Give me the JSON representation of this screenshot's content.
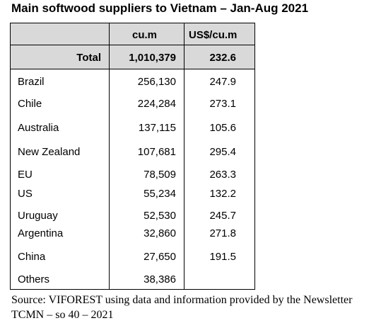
{
  "title": "Main softwood suppliers to Vietnam – Jan-Aug 2021",
  "table": {
    "columns": [
      "cu.m",
      "US$/cu.m"
    ],
    "total": {
      "label": "Total",
      "volume": "1,010,379",
      "price": "232.6"
    },
    "rows": [
      {
        "country": "Brazil",
        "volume": "256,130",
        "price": "247.9"
      },
      {
        "country": "Chile",
        "volume": "224,284",
        "price": "273.1"
      },
      {
        "country": "Australia",
        "volume": "137,115",
        "price": "105.6"
      },
      {
        "country": "New Zealand",
        "volume": "107,681",
        "price": "295.4"
      },
      {
        "country": "EU",
        "volume": "78,509",
        "price": "263.3"
      },
      {
        "country": "US",
        "volume": "55,234",
        "price": "132.2"
      },
      {
        "country": "Uruguay",
        "volume": "52,530",
        "price": "245.7"
      },
      {
        "country": "Argentina",
        "volume": "32,860",
        "price": "271.8"
      },
      {
        "country": "China",
        "volume": "27,650",
        "price": "191.5"
      },
      {
        "country": "Others",
        "volume": "38,386",
        "price": ""
      }
    ]
  },
  "source": "Source: VIFOREST using data and information provided by the Newsletter TCMN – so 40 – 2021"
}
